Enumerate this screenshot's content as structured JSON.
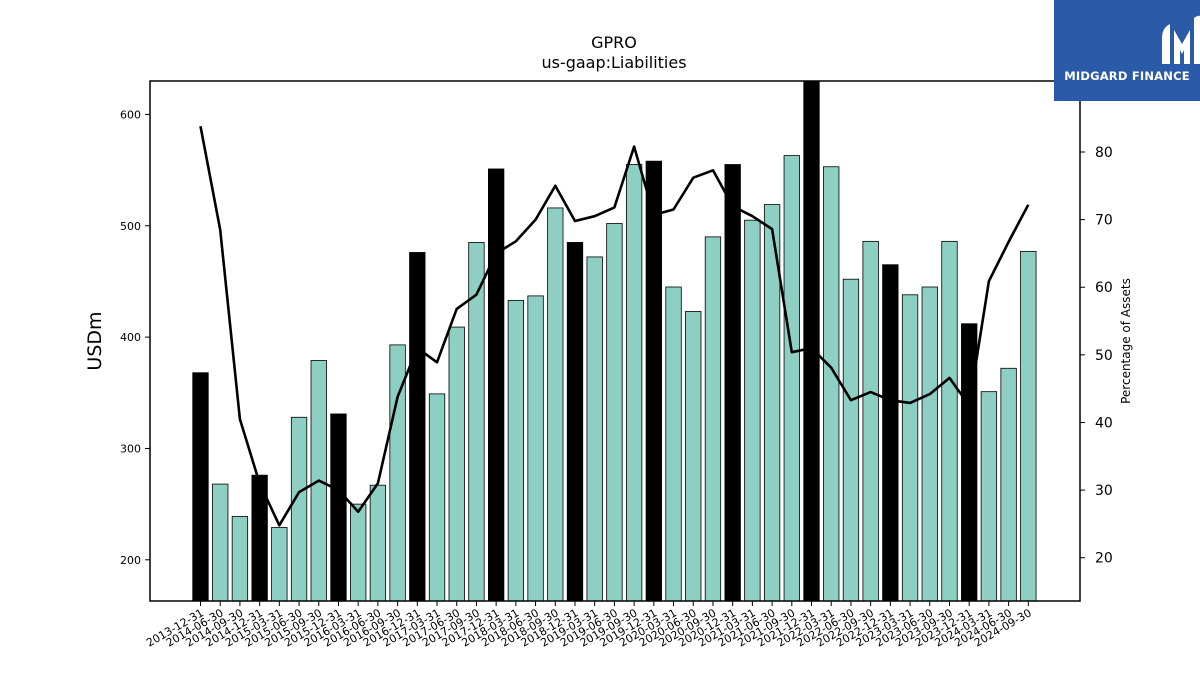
{
  "chart_data": {
    "type": "bar+line",
    "title": "GPRO",
    "subtitle": "us-gaap:Liabilities",
    "ylabel_left": "USDm",
    "ylabel_right": "Percentage of Assets",
    "ylim_left": [
      163,
      630
    ],
    "ylim_right": [
      13.6,
      90.5
    ],
    "yticks_left": [
      200,
      300,
      400,
      500,
      600
    ],
    "yticks_right": [
      20,
      30,
      40,
      50,
      60,
      70,
      80
    ],
    "grid": false,
    "categories": [
      "2013-12-31",
      "2014-06-30",
      "2014-09-30",
      "2014-12-31",
      "2015-03-31",
      "2015-06-30",
      "2015-09-30",
      "2015-12-31",
      "2016-03-31",
      "2016-06-30",
      "2016-09-30",
      "2016-12-31",
      "2017-03-31",
      "2017-06-30",
      "2017-09-30",
      "2017-12-31",
      "2018-03-31",
      "2018-06-30",
      "2018-09-30",
      "2018-12-31",
      "2019-03-31",
      "2019-06-30",
      "2019-09-30",
      "2019-12-31",
      "2020-03-31",
      "2020-06-30",
      "2020-09-30",
      "2020-12-31",
      "2021-03-31",
      "2021-06-30",
      "2021-09-30",
      "2021-12-31",
      "2022-03-31",
      "2022-06-30",
      "2022-09-30",
      "2022-12-31",
      "2023-03-31",
      "2023-06-30",
      "2023-09-30",
      "2023-12-31",
      "2024-03-31",
      "2024-06-30",
      "2024-09-30"
    ],
    "series": [
      {
        "kind": "bar",
        "values": [
          368,
          268,
          239,
          276,
          229,
          328,
          379,
          331,
          250,
          267,
          393,
          476,
          349,
          409,
          485,
          551,
          433,
          437,
          516,
          485,
          472,
          502,
          555,
          558,
          445,
          423,
          490,
          555,
          505,
          519,
          563,
          630,
          553,
          452,
          486,
          465,
          438,
          445,
          486,
          412,
          351,
          372,
          477
        ],
        "year_end_color": "#000000",
        "quarter_color": "#8ecfc4"
      },
      {
        "kind": "line",
        "axis": "right",
        "color": "#000000",
        "values": [
          83.8,
          68.5,
          40.5,
          31.0,
          24.8,
          29.7,
          31.4,
          30.0,
          26.8,
          31.0,
          43.8,
          51.0,
          48.9,
          56.8,
          58.9,
          65.0,
          66.8,
          70.0,
          75.0,
          69.8,
          70.5,
          71.8,
          80.8,
          70.7,
          71.5,
          76.2,
          77.3,
          72.0,
          70.5,
          68.6,
          50.4,
          51.0,
          48.1,
          43.3,
          44.5,
          43.3,
          42.9,
          44.2,
          46.6,
          42.5,
          60.9,
          66.7,
          72.2
        ]
      }
    ]
  },
  "logo": {
    "brand": "MIDGARD FINANCE"
  }
}
